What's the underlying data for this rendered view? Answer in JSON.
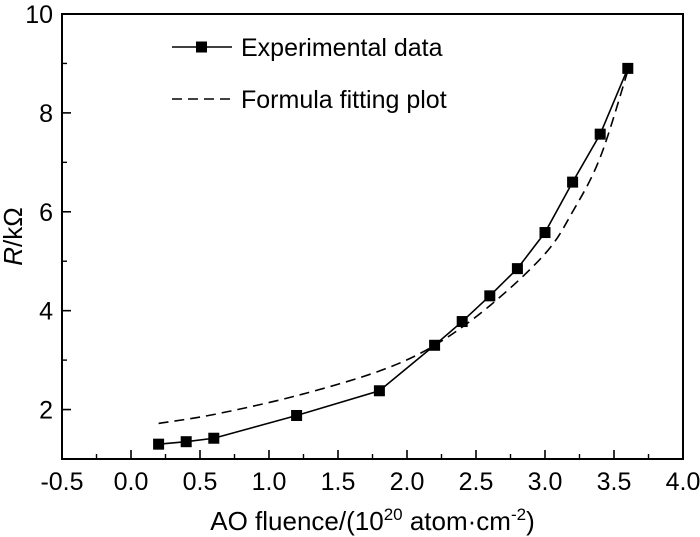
{
  "chart_data": {
    "type": "line",
    "xlabel": {
      "prefix": "AO fluence/(10",
      "exp": "20",
      "middle": " atom·cm",
      "exp2": "-2",
      "suffix": ")"
    },
    "ylabel": {
      "italic": "R",
      "rest": "/kΩ"
    },
    "xlim": [
      -0.5,
      4.0
    ],
    "ylim": [
      1.0,
      10.0
    ],
    "xticks": [
      "-0.5",
      "0.0",
      "0.5",
      "1.0",
      "1.5",
      "2.0",
      "2.5",
      "3.0",
      "3.5",
      "4.0"
    ],
    "yticks": [
      "2",
      "4",
      "6",
      "8",
      "10"
    ],
    "legend_position": "top-left",
    "series": [
      {
        "name": "Experimental data",
        "style": "solid-square-markers",
        "x": [
          0.2,
          0.4,
          0.6,
          1.2,
          1.8,
          2.2,
          2.4,
          2.6,
          2.8,
          3.0,
          3.2,
          3.4,
          3.6
        ],
        "y": [
          1.3,
          1.35,
          1.42,
          1.88,
          2.38,
          3.3,
          3.78,
          4.3,
          4.85,
          5.58,
          6.6,
          7.57,
          8.9
        ]
      },
      {
        "name": "Formula fitting plot",
        "style": "dashed",
        "x": [
          0.2,
          0.6,
          1.2,
          1.8,
          2.2,
          2.6,
          3.0,
          3.2,
          3.4,
          3.6
        ],
        "y": [
          1.72,
          1.9,
          2.28,
          2.78,
          3.3,
          4.1,
          5.15,
          6.0,
          7.1,
          8.85
        ]
      }
    ]
  }
}
